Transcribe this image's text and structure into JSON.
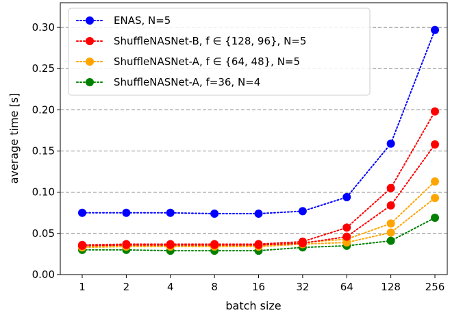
{
  "chart_data": {
    "type": "line",
    "xlabel": "batch size",
    "ylabel": "average time [s]",
    "categories": [
      "1",
      "2",
      "4",
      "8",
      "16",
      "32",
      "64",
      "128",
      "256"
    ],
    "ylim": [
      0.0,
      0.33
    ],
    "yticks": [
      "0.00",
      "0.05",
      "0.10",
      "0.15",
      "0.20",
      "0.25",
      "0.30"
    ],
    "grid": "horizontal dashed",
    "legend_position": "top-left",
    "series": [
      {
        "name": "ENAS, N=5",
        "color": "#0000ff",
        "values": [
          0.075,
          0.075,
          0.075,
          0.074,
          0.074,
          0.077,
          0.094,
          0.159,
          0.297
        ]
      },
      {
        "name": "ShuffleNASNet-B, f ∈ {128, 96}, N=5",
        "color": "#ff0000",
        "values": [
          0.036,
          0.037,
          0.037,
          0.037,
          0.037,
          0.04,
          0.057,
          0.105,
          0.198
        ]
      },
      {
        "name": null,
        "color": "#ff0000",
        "values": [
          0.035,
          0.036,
          0.036,
          0.036,
          0.036,
          0.038,
          0.046,
          0.084,
          0.158
        ]
      },
      {
        "name": "ShuffleNASNet-A, f ∈ {64, 48}, N=5",
        "color": "#ffa500",
        "values": [
          0.034,
          0.035,
          0.035,
          0.035,
          0.035,
          0.039,
          0.043,
          0.062,
          0.113
        ]
      },
      {
        "name": null,
        "color": "#ffa500",
        "values": [
          0.033,
          0.034,
          0.034,
          0.034,
          0.034,
          0.037,
          0.039,
          0.051,
          0.093
        ]
      },
      {
        "name": "ShuffleNASNet-A, f=36, N=4",
        "color": "#008000",
        "values": [
          0.03,
          0.03,
          0.029,
          0.029,
          0.029,
          0.033,
          0.035,
          0.041,
          0.069
        ]
      }
    ]
  }
}
